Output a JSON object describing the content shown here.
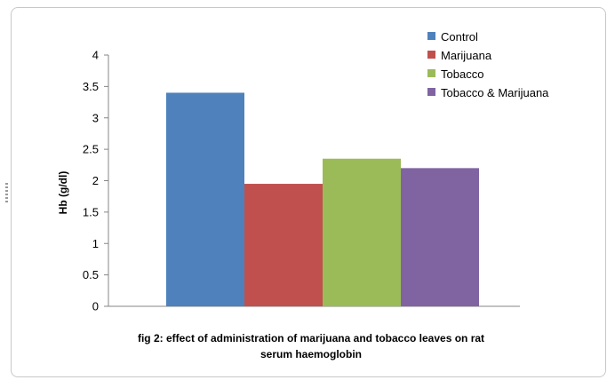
{
  "chart_data": {
    "type": "bar",
    "categories": [
      ""
    ],
    "series": [
      {
        "name": "Control",
        "color": "#4F81BD",
        "values": [
          3.4
        ]
      },
      {
        "name": "Marijuana",
        "color": "#C0504D",
        "values": [
          1.95
        ]
      },
      {
        "name": "Tobacco",
        "color": "#9BBB59",
        "values": [
          2.35
        ]
      },
      {
        "name": "Tobacco & Marijuana",
        "color": "#8064A2",
        "values": [
          2.2
        ]
      }
    ],
    "ylabel": "Hb (g/dl)",
    "ylim": [
      0,
      4
    ],
    "yticks": [
      "0",
      "0.5",
      "1",
      "1.5",
      "2",
      "2.5",
      "3",
      "3.5",
      "4"
    ],
    "grid": false,
    "legend": "top-right"
  },
  "caption": {
    "line1": "fig 2: effect of administration of marijuana and tobacco leaves on rat",
    "line2": "serum haemoglobin"
  }
}
